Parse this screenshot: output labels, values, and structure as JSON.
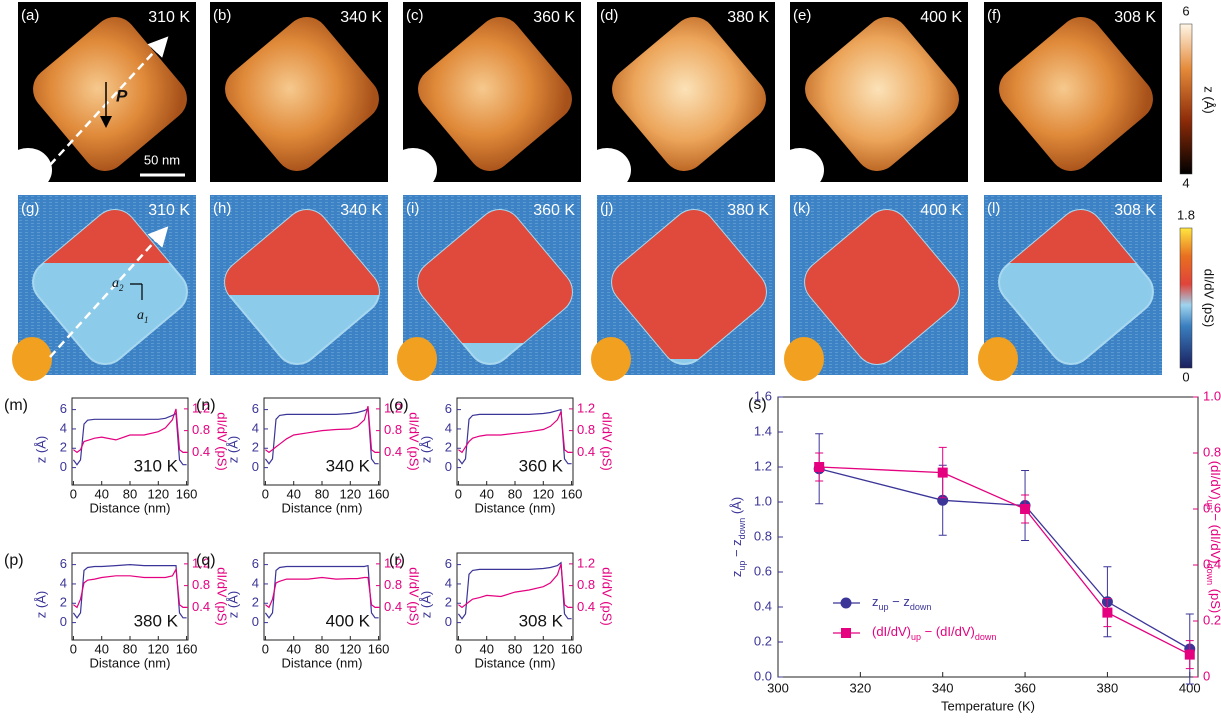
{
  "maps": {
    "topo": [
      {
        "label": "(a)",
        "temp": "310 K"
      },
      {
        "label": "(b)",
        "temp": "340 K"
      },
      {
        "label": "(c)",
        "temp": "360 K"
      },
      {
        "label": "(d)",
        "temp": "380 K"
      },
      {
        "label": "(e)",
        "temp": "400 K"
      },
      {
        "label": "(f)",
        "temp": "308 K"
      }
    ],
    "didv": [
      {
        "label": "(g)",
        "temp": "310 K"
      },
      {
        "label": "(h)",
        "temp": "340 K"
      },
      {
        "label": "(i)",
        "temp": "360 K"
      },
      {
        "label": "(j)",
        "temp": "380 K"
      },
      {
        "label": "(k)",
        "temp": "400 K"
      },
      {
        "label": "(l)",
        "temp": "308 K"
      }
    ],
    "annotations": {
      "polarization": "P",
      "scale_bar": "50 nm",
      "a1": "a",
      "a1_sub": "1",
      "a2": "a",
      "a2_sub": "2"
    }
  },
  "colorbars": {
    "topo": {
      "max": "6",
      "min": "4",
      "label": "z (Å)"
    },
    "didv": {
      "max": "1.8",
      "min": "0",
      "label": "dI/dV (pS)"
    }
  },
  "chart_data": [
    {
      "type": "line",
      "panel": "(m)",
      "annotation": "310 K",
      "xlabel": "Distance (nm)",
      "ylabel": "z (Å)",
      "y2label": "dI/dV (pS)",
      "xlim": [
        -2,
        162
      ],
      "xticks": [
        0,
        40,
        80,
        120,
        160
      ],
      "ylim": [
        -1.8,
        7.2
      ],
      "yticks": [
        0,
        2,
        4,
        6
      ],
      "y2lim": [
        -0.2,
        1.4
      ],
      "y2ticks": [
        0.4,
        0.8,
        1.2
      ],
      "x": [
        0,
        5,
        10,
        15,
        20,
        30,
        40,
        60,
        80,
        100,
        120,
        130,
        140,
        145,
        150,
        155,
        160
      ],
      "series": [
        {
          "color": "#3b3598",
          "values": [
            0.8,
            0.3,
            0.8,
            4.5,
            4.9,
            5.0,
            5.0,
            5.0,
            5.0,
            5.0,
            5.0,
            5.1,
            5.4,
            5.6,
            0.8,
            0.3,
            0.3
          ]
        },
        {
          "color": "#e4007f",
          "axis": "y2",
          "values": [
            0.45,
            0.4,
            0.45,
            0.6,
            0.62,
            0.66,
            0.68,
            0.63,
            0.72,
            0.72,
            0.78,
            0.85,
            1.0,
            1.2,
            0.45,
            0.4,
            0.4
          ]
        }
      ]
    },
    {
      "type": "line",
      "panel": "(n)",
      "annotation": "340 K",
      "xlabel": "Distance (nm)",
      "ylabel": "z (Å)",
      "y2label": "dI/dV (pS)",
      "xlim": [
        -2,
        162
      ],
      "xticks": [
        0,
        40,
        80,
        120,
        160
      ],
      "ylim": [
        -1.8,
        7.2
      ],
      "yticks": [
        0,
        2,
        4,
        6
      ],
      "y2lim": [
        -0.2,
        1.4
      ],
      "y2ticks": [
        0.4,
        0.8,
        1.2
      ],
      "x": [
        0,
        5,
        10,
        15,
        20,
        30,
        40,
        60,
        80,
        100,
        120,
        130,
        140,
        145,
        150,
        155,
        160
      ],
      "series": [
        {
          "color": "#3b3598",
          "values": [
            0.9,
            0.4,
            0.9,
            5.0,
            5.4,
            5.5,
            5.5,
            5.5,
            5.5,
            5.5,
            5.6,
            5.7,
            5.9,
            6.1,
            0.9,
            0.4,
            0.4
          ]
        },
        {
          "color": "#e4007f",
          "axis": "y2",
          "values": [
            0.45,
            0.4,
            0.45,
            0.5,
            0.55,
            0.65,
            0.72,
            0.76,
            0.8,
            0.82,
            0.83,
            0.88,
            1.0,
            1.25,
            0.45,
            0.4,
            0.4
          ]
        }
      ]
    },
    {
      "type": "line",
      "panel": "(o)",
      "annotation": "360 K",
      "xlabel": "Distance (nm)",
      "ylabel": "z (Å)",
      "y2label": "dI/dV (pS)",
      "xlim": [
        -2,
        162
      ],
      "xticks": [
        0,
        40,
        80,
        120,
        160
      ],
      "ylim": [
        -1.8,
        7.2
      ],
      "yticks": [
        0,
        2,
        4,
        6
      ],
      "y2lim": [
        -0.2,
        1.4
      ],
      "y2ticks": [
        0.4,
        0.8,
        1.2
      ],
      "x": [
        0,
        5,
        10,
        15,
        20,
        30,
        40,
        60,
        80,
        100,
        120,
        130,
        140,
        145,
        150,
        155,
        160
      ],
      "series": [
        {
          "color": "#3b3598",
          "values": [
            0.9,
            0.4,
            0.9,
            5.0,
            5.4,
            5.5,
            5.5,
            5.5,
            5.5,
            5.5,
            5.6,
            5.7,
            5.9,
            6.0,
            0.9,
            0.4,
            0.4
          ]
        },
        {
          "color": "#e4007f",
          "axis": "y2",
          "values": [
            0.45,
            0.4,
            0.5,
            0.6,
            0.66,
            0.7,
            0.72,
            0.72,
            0.75,
            0.78,
            0.82,
            0.88,
            1.0,
            1.15,
            0.45,
            0.4,
            0.4
          ]
        }
      ]
    },
    {
      "type": "line",
      "panel": "(p)",
      "annotation": "380 K",
      "xlabel": "Distance (nm)",
      "ylabel": "z (Å)",
      "y2label": "dI/dV (pS)",
      "xlim": [
        -2,
        162
      ],
      "xticks": [
        0,
        40,
        80,
        120,
        160
      ],
      "ylim": [
        -1.8,
        7.2
      ],
      "yticks": [
        0,
        2,
        4,
        6
      ],
      "y2lim": [
        -0.2,
        1.4
      ],
      "y2ticks": [
        0.4,
        0.8,
        1.2
      ],
      "x": [
        0,
        5,
        10,
        15,
        20,
        30,
        40,
        60,
        80,
        100,
        120,
        130,
        140,
        145,
        150,
        155,
        160
      ],
      "series": [
        {
          "color": "#3b3598",
          "values": [
            1.0,
            0.5,
            1.0,
            5.4,
            5.7,
            5.8,
            5.8,
            5.9,
            6.0,
            5.9,
            5.9,
            5.9,
            5.9,
            5.9,
            1.0,
            0.5,
            0.5
          ]
        },
        {
          "color": "#e4007f",
          "axis": "y2",
          "values": [
            0.45,
            0.4,
            0.55,
            0.85,
            0.9,
            0.92,
            0.95,
            0.98,
            0.98,
            0.95,
            0.95,
            0.95,
            0.98,
            1.1,
            0.45,
            0.4,
            0.4
          ]
        }
      ]
    },
    {
      "type": "line",
      "panel": "(q)",
      "annotation": "400 K",
      "xlabel": "Distance (nm)",
      "ylabel": "z (Å)",
      "y2label": "dI/dV (pS)",
      "xlim": [
        -2,
        162
      ],
      "xticks": [
        0,
        40,
        80,
        120,
        160
      ],
      "ylim": [
        -1.8,
        7.2
      ],
      "yticks": [
        0,
        2,
        4,
        6
      ],
      "y2lim": [
        -0.2,
        1.4
      ],
      "y2ticks": [
        0.4,
        0.8,
        1.2
      ],
      "x": [
        0,
        5,
        10,
        15,
        20,
        30,
        40,
        60,
        80,
        100,
        120,
        130,
        140,
        145,
        150,
        155,
        160
      ],
      "series": [
        {
          "color": "#3b3598",
          "values": [
            1.0,
            0.5,
            1.0,
            5.4,
            5.7,
            5.8,
            5.8,
            5.8,
            5.8,
            5.8,
            5.8,
            5.8,
            5.8,
            5.9,
            1.0,
            0.5,
            0.5
          ]
        },
        {
          "color": "#e4007f",
          "axis": "y2",
          "values": [
            0.45,
            0.4,
            0.55,
            0.85,
            0.88,
            0.92,
            0.92,
            0.92,
            0.95,
            0.92,
            0.93,
            0.93,
            0.95,
            0.95,
            0.45,
            0.4,
            0.4
          ]
        }
      ]
    },
    {
      "type": "line",
      "panel": "(r)",
      "annotation": "308 K",
      "xlabel": "Distance (nm)",
      "ylabel": "z (Å)",
      "y2label": "dI/dV (pS)",
      "xlim": [
        -2,
        162
      ],
      "xticks": [
        0,
        40,
        80,
        120,
        160
      ],
      "ylim": [
        -1.8,
        7.2
      ],
      "yticks": [
        0,
        2,
        4,
        6
      ],
      "y2lim": [
        -0.2,
        1.4
      ],
      "y2ticks": [
        0.4,
        0.8,
        1.2
      ],
      "x": [
        0,
        5,
        10,
        15,
        20,
        30,
        40,
        60,
        80,
        100,
        120,
        130,
        140,
        145,
        150,
        155,
        160
      ],
      "series": [
        {
          "color": "#3b3598",
          "values": [
            0.9,
            0.4,
            0.9,
            5.0,
            5.4,
            5.5,
            5.5,
            5.5,
            5.5,
            5.5,
            5.6,
            5.7,
            5.9,
            6.2,
            0.9,
            0.4,
            0.4
          ]
        },
        {
          "color": "#e4007f",
          "axis": "y2",
          "values": [
            0.45,
            0.4,
            0.45,
            0.5,
            0.55,
            0.58,
            0.62,
            0.6,
            0.68,
            0.72,
            0.78,
            0.85,
            1.0,
            1.2,
            0.45,
            0.4,
            0.4
          ]
        }
      ]
    },
    {
      "type": "errorbar",
      "panel": "(s)",
      "xlabel": "Temperature (K)",
      "ylabel": [
        "z",
        "up",
        " − z",
        "down",
        " (Å)"
      ],
      "y2label": [
        "(dI/dV)",
        "up",
        " − (dI/dV)",
        "down",
        " (pS)"
      ],
      "xlim": [
        300,
        402
      ],
      "xticks": [
        300,
        320,
        340,
        360,
        380,
        400
      ],
      "ylim": [
        0,
        1.6
      ],
      "yticks": [
        {
          "value": 0,
          "label": "0.0"
        },
        0.2,
        0.4,
        0.6,
        0.8,
        {
          "value": 1,
          "label": "1.0"
        },
        1.2,
        1.4,
        1.6
      ],
      "y2lim": [
        0,
        1
      ],
      "y2ticks": [
        0,
        0.2,
        0.4,
        0.6,
        0.8,
        {
          "value": 1,
          "label": "1.0"
        }
      ],
      "x": [
        310,
        340,
        360,
        380,
        400
      ],
      "series": [
        {
          "name": [
            "z",
            "up",
            " − z",
            "down"
          ],
          "color": "#3b3598",
          "marker": "circle",
          "values": [
            1.19,
            1.01,
            0.98,
            0.43,
            0.16
          ],
          "errors": [
            0.2,
            0.2,
            0.2,
            0.2,
            0.2
          ]
        },
        {
          "name": [
            "(dI/dV)",
            "up",
            " − (dI/dV)",
            "down"
          ],
          "color": "#e4007f",
          "marker": "square",
          "axis": "y2",
          "values": [
            0.75,
            0.73,
            0.6,
            0.23,
            0.08
          ],
          "errors": [
            0.05,
            0.09,
            0.05,
            0.05,
            0.05
          ]
        }
      ]
    }
  ]
}
